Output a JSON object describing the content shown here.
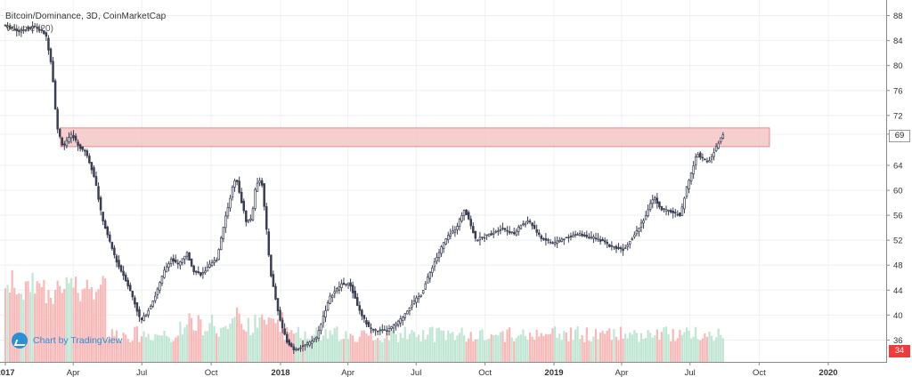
{
  "header": {
    "title": "Bitcoin/Dominance, 3D, CoinMarketCap",
    "volume_label": "Volume (20)"
  },
  "watermark": {
    "label": "Chart by TradingView",
    "icon": "tradingview-cloud-icon"
  },
  "price_tags": {
    "last": "69",
    "volume": "34"
  },
  "colors": {
    "candle": "#3b3f52",
    "zone_fill": "#f4c6c6",
    "zone_stroke": "#e08f8f",
    "vol_up": "#bfe6d3",
    "vol_down": "#f8b8b8",
    "grid": "#eef0f3",
    "tag_red": "#ef3b3b"
  },
  "chart_data": {
    "type": "line",
    "title": "Bitcoin/Dominance, 3D, CoinMarketCap",
    "x_tick_labels": [
      "2017",
      "Apr",
      "Jul",
      "Oct",
      "2018",
      "Apr",
      "Jul",
      "Oct",
      "2019",
      "Apr",
      "Jul",
      "Oct",
      "2020"
    ],
    "y_tick_labels": [
      "88",
      "84",
      "80",
      "76",
      "72",
      "69",
      "64",
      "60",
      "56",
      "52",
      "48",
      "44",
      "40",
      "36"
    ],
    "ylim": [
      32.5,
      90.5
    ],
    "resistance_zone": [
      67,
      70
    ],
    "series": [
      {
        "values": [
          [
            "2017-01-01",
            86.5
          ],
          [
            "2017-01-20",
            85.5
          ],
          [
            "2017-02-10",
            86.3
          ],
          [
            "2017-02-25",
            85
          ],
          [
            "2017-03-05",
            80
          ],
          [
            "2017-03-12",
            70
          ],
          [
            "2017-03-20",
            67
          ],
          [
            "2017-04-01",
            69
          ],
          [
            "2017-04-10",
            67
          ],
          [
            "2017-04-20",
            66
          ],
          [
            "2017-05-01",
            62
          ],
          [
            "2017-05-10",
            56
          ],
          [
            "2017-05-20",
            52
          ],
          [
            "2017-06-01",
            48
          ],
          [
            "2017-06-10",
            46
          ],
          [
            "2017-06-20",
            43
          ],
          [
            "2017-07-01",
            39
          ],
          [
            "2017-07-10",
            40.5
          ],
          [
            "2017-07-20",
            43
          ],
          [
            "2017-08-01",
            47
          ],
          [
            "2017-08-10",
            49
          ],
          [
            "2017-08-20",
            48
          ],
          [
            "2017-08-31",
            50
          ],
          [
            "2017-09-10",
            47
          ],
          [
            "2017-09-20",
            46.5
          ],
          [
            "2017-10-01",
            48
          ],
          [
            "2017-10-10",
            49
          ],
          [
            "2017-10-20",
            55
          ],
          [
            "2017-11-01",
            61
          ],
          [
            "2017-11-05",
            62
          ],
          [
            "2017-11-12",
            58
          ],
          [
            "2017-11-18",
            55
          ],
          [
            "2017-11-25",
            55.5
          ],
          [
            "2017-12-01",
            61
          ],
          [
            "2017-12-08",
            62
          ],
          [
            "2017-12-13",
            56
          ],
          [
            "2017-12-20",
            47
          ],
          [
            "2017-12-31",
            40
          ],
          [
            "2018-01-10",
            36
          ],
          [
            "2018-01-20",
            34.5
          ],
          [
            "2018-02-01",
            35
          ],
          [
            "2018-02-10",
            35.5
          ],
          [
            "2018-02-20",
            36.5
          ],
          [
            "2018-03-01",
            40
          ],
          [
            "2018-03-10",
            43
          ],
          [
            "2018-03-25",
            45
          ],
          [
            "2018-04-05",
            45
          ],
          [
            "2018-04-20",
            40
          ],
          [
            "2018-05-01",
            38
          ],
          [
            "2018-05-10",
            37.5
          ],
          [
            "2018-05-25",
            37.5
          ],
          [
            "2018-06-10",
            39
          ],
          [
            "2018-06-25",
            41.5
          ],
          [
            "2018-07-10",
            43.5
          ],
          [
            "2018-07-25",
            48
          ],
          [
            "2018-08-10",
            52
          ],
          [
            "2018-08-25",
            54
          ],
          [
            "2018-09-05",
            57
          ],
          [
            "2018-09-12",
            55
          ],
          [
            "2018-09-20",
            52
          ],
          [
            "2018-10-10",
            53
          ],
          [
            "2018-10-25",
            54
          ],
          [
            "2018-11-10",
            53
          ],
          [
            "2018-11-20",
            54.5
          ],
          [
            "2018-12-01",
            55
          ],
          [
            "2018-12-15",
            52.5
          ],
          [
            "2019-01-01",
            51.5
          ],
          [
            "2019-01-20",
            52.5
          ],
          [
            "2019-02-05",
            53
          ],
          [
            "2019-02-20",
            52.5
          ],
          [
            "2019-03-05",
            52
          ],
          [
            "2019-03-20",
            51
          ],
          [
            "2019-04-05",
            50.5
          ],
          [
            "2019-04-20",
            53
          ],
          [
            "2019-05-05",
            56
          ],
          [
            "2019-05-15",
            59
          ],
          [
            "2019-05-25",
            57
          ],
          [
            "2019-06-10",
            56.5
          ],
          [
            "2019-06-20",
            56
          ],
          [
            "2019-06-27",
            60
          ],
          [
            "2019-07-05",
            63
          ],
          [
            "2019-07-12",
            66
          ],
          [
            "2019-07-20",
            65
          ],
          [
            "2019-07-27",
            64.5
          ],
          [
            "2019-08-05",
            66.5
          ],
          [
            "2019-08-14",
            69
          ]
        ]
      }
    ]
  }
}
